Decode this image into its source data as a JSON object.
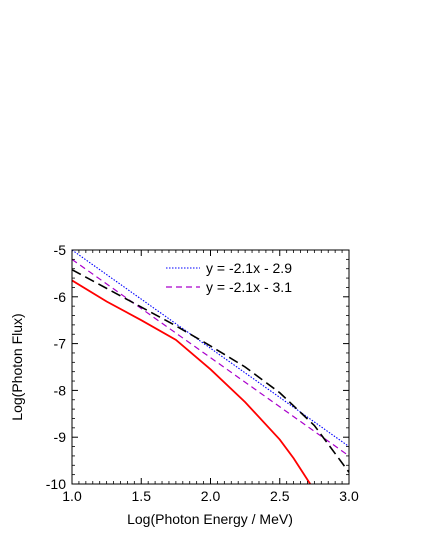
{
  "chart_data": {
    "type": "line",
    "xlabel": "Log(Photon Energy / MeV)",
    "ylabel": "Log(Photon Flux)",
    "xlim": [
      1.0,
      3.0
    ],
    "ylim": [
      -10,
      -5
    ],
    "x_ticks": [
      "1.0",
      "1.5",
      "2.0",
      "2.5",
      "3.0"
    ],
    "y_ticks": [
      "-5",
      "-6",
      "-7",
      "-8",
      "-9",
      "-10"
    ],
    "grid": false,
    "legend_position": "top",
    "series": [
      {
        "name": "y = -2.1x - 2.9",
        "color": "#0000ff",
        "style": "dotted",
        "in_legend": true,
        "points": [
          [
            1.0,
            -5.0
          ],
          [
            3.0,
            -9.2
          ]
        ]
      },
      {
        "name": "y = -2.1x - 3.1",
        "color": "#aa00cc",
        "style": "dashed",
        "in_legend": true,
        "points": [
          [
            1.0,
            -5.2
          ],
          [
            3.0,
            -9.4
          ]
        ]
      },
      {
        "name": "",
        "color": "#000000",
        "style": "longdash",
        "in_legend": false,
        "points": [
          [
            1.0,
            -5.42
          ],
          [
            1.25,
            -5.82
          ],
          [
            1.5,
            -6.22
          ],
          [
            1.75,
            -6.62
          ],
          [
            2.0,
            -7.05
          ],
          [
            2.25,
            -7.5
          ],
          [
            2.5,
            -8.05
          ],
          [
            2.75,
            -8.75
          ],
          [
            3.0,
            -9.75
          ]
        ]
      },
      {
        "name": "",
        "color": "#ff0000",
        "style": "solid",
        "in_legend": false,
        "points": [
          [
            1.0,
            -5.65
          ],
          [
            1.25,
            -6.1
          ],
          [
            1.5,
            -6.5
          ],
          [
            1.75,
            -6.92
          ],
          [
            2.0,
            -7.55
          ],
          [
            2.25,
            -8.25
          ],
          [
            2.5,
            -9.05
          ],
          [
            2.6,
            -9.45
          ],
          [
            2.72,
            -10.0
          ]
        ]
      }
    ]
  }
}
